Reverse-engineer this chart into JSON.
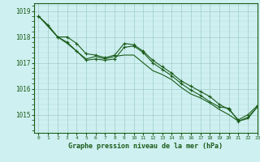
{
  "title": "Graphe pression niveau de la mer (hPa)",
  "bg_color": "#cff0f0",
  "grid_color_major": "#a0cccc",
  "line_color": "#1a5c1a",
  "xlim": [
    -0.5,
    23
  ],
  "ylim": [
    1014.3,
    1019.3
  ],
  "xticks": [
    0,
    1,
    2,
    3,
    4,
    5,
    6,
    7,
    8,
    9,
    10,
    11,
    12,
    13,
    14,
    15,
    16,
    17,
    18,
    19,
    20,
    21,
    22,
    23
  ],
  "yticks": [
    1015,
    1016,
    1017,
    1018,
    1019
  ],
  "series": [
    {
      "x": [
        0,
        1,
        2,
        3,
        4,
        5,
        6,
        7,
        8,
        9,
        10,
        11,
        12,
        13,
        14,
        15,
        16,
        17,
        18,
        19,
        20,
        21,
        22,
        23
      ],
      "y": [
        1018.8,
        1018.45,
        1018.0,
        1018.0,
        1017.75,
        1017.35,
        1017.3,
        1017.2,
        1017.3,
        1017.75,
        1017.7,
        1017.45,
        1017.1,
        1016.85,
        1016.6,
        1016.3,
        1016.1,
        1015.9,
        1015.7,
        1015.4,
        1015.2,
        1014.8,
        1015.0,
        1015.35
      ],
      "has_markers": true
    },
    {
      "x": [
        0,
        1,
        2,
        3,
        4,
        5,
        6,
        7,
        8,
        9,
        10,
        11,
        12,
        13,
        14,
        15,
        16,
        17,
        18,
        19,
        20,
        21,
        22,
        23
      ],
      "y": [
        1018.8,
        1018.45,
        1018.0,
        1017.75,
        1017.45,
        1017.15,
        1017.25,
        1017.15,
        1017.25,
        1017.3,
        1017.3,
        1017.0,
        1016.7,
        1016.55,
        1016.35,
        1016.05,
        1015.8,
        1015.65,
        1015.45,
        1015.2,
        1015.0,
        1014.75,
        1014.85,
        1015.3
      ],
      "has_markers": false
    },
    {
      "x": [
        0,
        2,
        3,
        4,
        5,
        6,
        7,
        8,
        9,
        10,
        11,
        12,
        13,
        14,
        15,
        16,
        17,
        18,
        19,
        20,
        21,
        22,
        23
      ],
      "y": [
        1018.8,
        1018.0,
        1017.8,
        1017.45,
        1017.1,
        1017.15,
        1017.1,
        1017.15,
        1017.6,
        1017.65,
        1017.4,
        1017.0,
        1016.75,
        1016.5,
        1016.2,
        1015.95,
        1015.75,
        1015.5,
        1015.3,
        1015.25,
        1014.75,
        1014.9,
        1015.3
      ],
      "has_markers": true
    }
  ],
  "marker": "+",
  "markersize": 3,
  "linewidth": 0.8,
  "xlabel_fontsize": 6,
  "ytick_fontsize": 5.5,
  "xtick_fontsize": 4.5
}
